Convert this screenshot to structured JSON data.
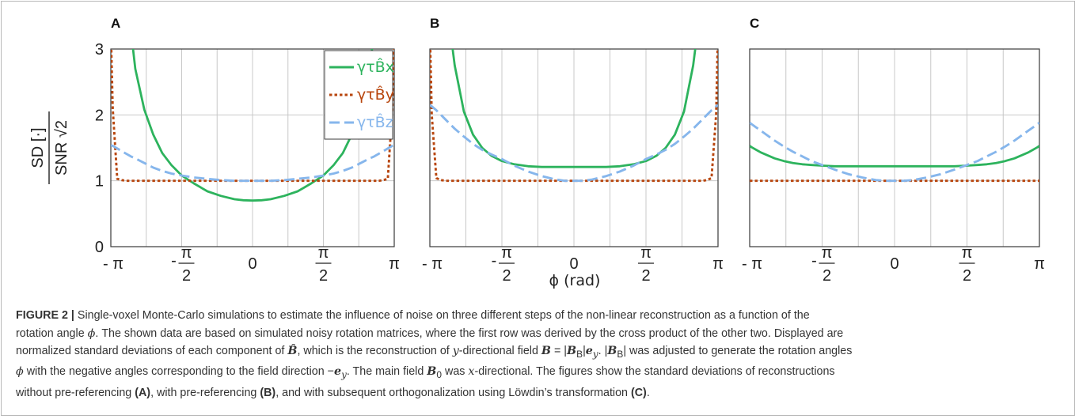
{
  "figure": {
    "ylabel_numerator": "SD [·]",
    "ylabel_denominator": "SNR √2",
    "xlabel": "ϕ (rad)",
    "x_tick_labels": [
      "- π",
      "-π/2",
      "0",
      "π/2",
      "π"
    ],
    "y_tick_labels": [
      "0",
      "1",
      "2",
      "3"
    ],
    "colors": {
      "x": "#2db35d",
      "y": "#b8460e",
      "z": "#86b6ec"
    },
    "legend": [
      {
        "key": "x",
        "text": "γτB̂x"
      },
      {
        "key": "y",
        "text": "γτB̂y"
      },
      {
        "key": "z",
        "text": "γτB̂z"
      }
    ]
  },
  "chart_data": [
    {
      "type": "line",
      "panel": "A",
      "xlabel": "ϕ (rad)",
      "ylabel": "SD [·] / (SNR √2)",
      "xlim": [
        -3.1416,
        3.1416
      ],
      "ylim": [
        0,
        3
      ],
      "grid": true,
      "legend_position": "top-right",
      "x": [
        -3.1416,
        -3.1,
        -3.0,
        -2.9,
        -2.8,
        -2.7,
        -2.6,
        -2.4,
        -2.2,
        -2.0,
        -1.8,
        -1.5708,
        -1.3,
        -1.0,
        -0.7,
        -0.4,
        -0.2,
        0,
        0.2,
        0.4,
        0.7,
        1.0,
        1.3,
        1.5708,
        1.8,
        2.0,
        2.2,
        2.4,
        2.6,
        2.7,
        2.8,
        2.9,
        3.0,
        3.1,
        3.1416
      ],
      "series": [
        {
          "name": "γτB̂x",
          "key": "x",
          "style": "solid",
          "values": [
            null,
            null,
            null,
            null,
            null,
            3.3,
            2.7,
            2.08,
            1.7,
            1.42,
            1.24,
            1.08,
            0.96,
            0.84,
            0.77,
            0.72,
            0.705,
            0.7,
            0.705,
            0.72,
            0.77,
            0.84,
            0.96,
            1.08,
            1.24,
            1.42,
            1.7,
            2.08,
            2.7,
            3.3,
            null,
            null,
            null,
            null,
            null
          ]
        },
        {
          "name": "γτB̂y",
          "key": "y",
          "style": "dotted",
          "values": [
            3.3,
            2.1,
            1.03,
            1.01,
            1.0,
            1.0,
            1.0,
            1.0,
            1.0,
            1.0,
            1.0,
            1.0,
            1.0,
            1.0,
            1.0,
            1.0,
            1.0,
            1.0,
            1.0,
            1.0,
            1.0,
            1.0,
            1.0,
            1.0,
            1.0,
            1.0,
            1.0,
            1.0,
            1.0,
            1.0,
            1.0,
            1.01,
            1.03,
            2.1,
            3.3
          ]
        },
        {
          "name": "γτB̂z",
          "key": "z",
          "style": "dashed",
          "values": [
            1.54,
            1.53,
            1.49,
            1.45,
            1.41,
            1.37,
            1.34,
            1.27,
            1.2,
            1.15,
            1.11,
            1.08,
            1.05,
            1.03,
            1.01,
            1.0,
            1.0,
            1.0,
            1.0,
            1.0,
            1.01,
            1.03,
            1.05,
            1.08,
            1.11,
            1.15,
            1.2,
            1.27,
            1.34,
            1.37,
            1.41,
            1.45,
            1.49,
            1.53,
            1.54
          ]
        }
      ]
    },
    {
      "type": "line",
      "panel": "B",
      "xlabel": "ϕ (rad)",
      "xlim": [
        -3.1416,
        3.1416
      ],
      "ylim": [
        0,
        3
      ],
      "grid": true,
      "x": [
        -3.1416,
        -3.1,
        -3.0,
        -2.9,
        -2.8,
        -2.7,
        -2.6,
        -2.4,
        -2.2,
        -2.0,
        -1.8,
        -1.5708,
        -1.3,
        -1.0,
        -0.7,
        -0.4,
        -0.2,
        0,
        0.2,
        0.4,
        0.7,
        1.0,
        1.3,
        1.5708,
        1.8,
        2.0,
        2.2,
        2.4,
        2.6,
        2.7,
        2.8,
        2.9,
        3.0,
        3.1,
        3.1416
      ],
      "series": [
        {
          "name": "γτB̂x",
          "key": "x",
          "style": "solid",
          "values": [
            null,
            null,
            null,
            null,
            null,
            3.3,
            2.75,
            2.05,
            1.7,
            1.5,
            1.38,
            1.3,
            1.25,
            1.22,
            1.21,
            1.21,
            1.21,
            1.21,
            1.21,
            1.21,
            1.21,
            1.22,
            1.25,
            1.3,
            1.38,
            1.5,
            1.7,
            2.05,
            2.75,
            3.3,
            null,
            null,
            null,
            null,
            null
          ]
        },
        {
          "name": "γτB̂y",
          "key": "y",
          "style": "dotted",
          "values": [
            3.3,
            2.0,
            1.04,
            1.01,
            1.0,
            1.0,
            1.0,
            1.0,
            1.0,
            1.0,
            1.0,
            1.0,
            1.0,
            1.0,
            1.0,
            1.0,
            1.0,
            1.0,
            1.0,
            1.0,
            1.0,
            1.0,
            1.0,
            1.0,
            1.0,
            1.0,
            1.0,
            1.0,
            1.0,
            1.0,
            1.0,
            1.01,
            1.04,
            2.0,
            3.3
          ]
        },
        {
          "name": "γτB̂z",
          "key": "z",
          "style": "dashed",
          "values": [
            2.15,
            2.13,
            2.07,
            2.0,
            1.93,
            1.86,
            1.79,
            1.67,
            1.56,
            1.47,
            1.4,
            1.33,
            1.23,
            1.14,
            1.07,
            1.02,
            1.0,
            1.0,
            1.0,
            1.02,
            1.07,
            1.14,
            1.23,
            1.33,
            1.4,
            1.47,
            1.56,
            1.67,
            1.79,
            1.86,
            1.93,
            2.0,
            2.07,
            2.13,
            2.15
          ]
        }
      ]
    },
    {
      "type": "line",
      "panel": "C",
      "xlabel": "ϕ (rad)",
      "xlim": [
        -3.1416,
        3.1416
      ],
      "ylim": [
        0,
        3
      ],
      "grid": true,
      "x": [
        -3.1416,
        -3.1,
        -3.0,
        -2.9,
        -2.8,
        -2.7,
        -2.6,
        -2.4,
        -2.2,
        -2.0,
        -1.8,
        -1.5708,
        -1.3,
        -1.0,
        -0.7,
        -0.4,
        -0.2,
        0,
        0.2,
        0.4,
        0.7,
        1.0,
        1.3,
        1.5708,
        1.8,
        2.0,
        2.2,
        2.4,
        2.6,
        2.7,
        2.8,
        2.9,
        3.0,
        3.1,
        3.1416
      ],
      "series": [
        {
          "name": "γτB̂x",
          "key": "x",
          "style": "solid",
          "values": [
            1.53,
            1.51,
            1.47,
            1.43,
            1.4,
            1.37,
            1.34,
            1.3,
            1.27,
            1.25,
            1.24,
            1.23,
            1.22,
            1.22,
            1.22,
            1.22,
            1.22,
            1.22,
            1.22,
            1.22,
            1.22,
            1.22,
            1.22,
            1.23,
            1.24,
            1.25,
            1.27,
            1.3,
            1.34,
            1.37,
            1.4,
            1.43,
            1.47,
            1.51,
            1.53
          ]
        },
        {
          "name": "γτB̂y",
          "key": "y",
          "style": "dotted",
          "values": [
            1.0,
            1.0,
            1.0,
            1.0,
            1.0,
            1.0,
            1.0,
            1.0,
            1.0,
            1.0,
            1.0,
            1.0,
            1.0,
            1.0,
            1.0,
            1.0,
            1.0,
            1.0,
            1.0,
            1.0,
            1.0,
            1.0,
            1.0,
            1.0,
            1.0,
            1.0,
            1.0,
            1.0,
            1.0,
            1.0,
            1.0,
            1.0,
            1.0,
            1.0,
            1.0
          ]
        },
        {
          "name": "γτB̂z",
          "key": "z",
          "style": "dashed",
          "values": [
            1.88,
            1.86,
            1.81,
            1.76,
            1.71,
            1.66,
            1.61,
            1.52,
            1.44,
            1.37,
            1.3,
            1.24,
            1.17,
            1.1,
            1.05,
            1.01,
            1.0,
            1.0,
            1.0,
            1.01,
            1.05,
            1.1,
            1.17,
            1.24,
            1.3,
            1.37,
            1.44,
            1.52,
            1.61,
            1.66,
            1.71,
            1.76,
            1.81,
            1.86,
            1.88
          ]
        }
      ]
    }
  ],
  "caption": {
    "label": "FIGURE 2 |",
    "l1": "Single-voxel Monte-Carlo simulations to estimate the influence of noise on three different steps of the non-linear reconstruction as a function of the",
    "l2a": "rotation angle ",
    "l2b": "ϕ",
    "l2c": ". The shown data are based on simulated noisy rotation matrices, where the first row was derived by the cross product of the other two. Displayed are",
    "l3a": "normalized standard deviations of each component of ",
    "l3b": "B̂",
    "l3c": ", which is the reconstruction of ",
    "l3d": "y",
    "l3e": "-directional field ",
    "l3f": "B",
    "l3g": " = |",
    "l3h": "B",
    "l3i": "B",
    "l3j": "|",
    "l3k": "e",
    "l3l": "y",
    "l3m": ". |",
    "l3n": "B",
    "l3o": "B",
    "l3p": "| was adjusted to generate the rotation angles",
    "l4a": "ϕ",
    "l4b": " with the negative angles corresponding to the field direction −",
    "l4c": "e",
    "l4d": "y",
    "l4e": ". The main field ",
    "l4f": "B",
    "l4g": "0",
    "l4h": " was ",
    "l4i": "x",
    "l4j": "-directional. The figures show the standard deviations of reconstructions",
    "l5a": "without pre-referencing ",
    "l5b": "(A)",
    "l5c": ", with pre-referencing ",
    "l5d": "(B)",
    "l5e": ", and with subsequent orthogonalization using Löwdin’s transformation ",
    "l5f": "(C)",
    "l5g": "."
  }
}
